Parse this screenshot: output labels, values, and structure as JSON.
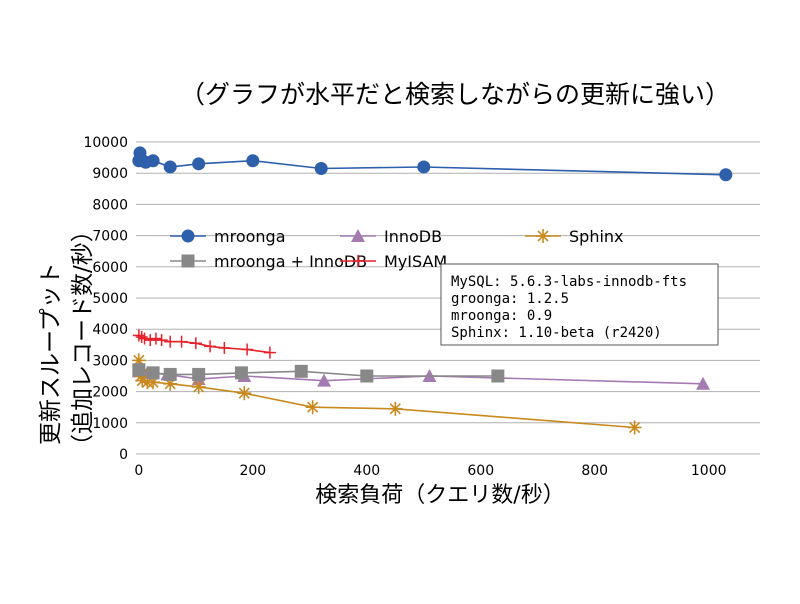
{
  "chart_data": {
    "type": "scatter",
    "title": "（グラフが水平だと検索しながらの更新に強い）",
    "xlabel": "検索負荷（クエリ数/秒）",
    "ylabel_line1": "更新スループット",
    "ylabel_line2": "（追加レコード数/秒）",
    "xlim": [
      -5,
      1090
    ],
    "ylim": [
      0,
      10000
    ],
    "xticks": [
      0,
      200,
      400,
      600,
      800,
      1000
    ],
    "yticks": [
      0,
      1000,
      2000,
      3000,
      4000,
      5000,
      6000,
      7000,
      8000,
      9000,
      10000
    ],
    "grid": "horizontal",
    "legend_position": "center-left",
    "series": [
      {
        "name": "mroonga",
        "color": "#2e5fab",
        "marker": "circle",
        "points": [
          [
            0,
            9400
          ],
          [
            2,
            9650
          ],
          [
            4,
            9450
          ],
          [
            12,
            9350
          ],
          [
            25,
            9400
          ],
          [
            55,
            9200
          ],
          [
            105,
            9300
          ],
          [
            200,
            9400
          ],
          [
            320,
            9150
          ],
          [
            500,
            9200
          ],
          [
            1030,
            8950
          ]
        ]
      },
      {
        "name": "InnoDB",
        "color": "#a47bb0",
        "marker": "triangle",
        "points": [
          [
            0,
            2650
          ],
          [
            15,
            2600
          ],
          [
            50,
            2550
          ],
          [
            105,
            2400
          ],
          [
            185,
            2500
          ],
          [
            325,
            2350
          ],
          [
            510,
            2500
          ],
          [
            990,
            2250
          ]
        ]
      },
      {
        "name": "Sphinx",
        "color": "#c8891e",
        "marker": "star",
        "points": [
          [
            0,
            3000
          ],
          [
            2,
            2700
          ],
          [
            4,
            2500
          ],
          [
            6,
            2350
          ],
          [
            15,
            2300
          ],
          [
            25,
            2300
          ],
          [
            55,
            2250
          ],
          [
            105,
            2150
          ],
          [
            185,
            1950
          ],
          [
            305,
            1500
          ],
          [
            450,
            1450
          ],
          [
            870,
            850
          ]
        ]
      },
      {
        "name": "mroonga + InnoDB",
        "color": "#888888",
        "marker": "square",
        "points": [
          [
            0,
            2700
          ],
          [
            25,
            2600
          ],
          [
            55,
            2550
          ],
          [
            105,
            2550
          ],
          [
            180,
            2600
          ],
          [
            285,
            2650
          ],
          [
            400,
            2500
          ],
          [
            630,
            2500
          ]
        ]
      },
      {
        "name": "MyISAM",
        "color": "#e8202a",
        "marker": "plus",
        "points": [
          [
            0,
            3800
          ],
          [
            5,
            3750
          ],
          [
            10,
            3700
          ],
          [
            20,
            3650
          ],
          [
            30,
            3700
          ],
          [
            40,
            3650
          ],
          [
            55,
            3600
          ],
          [
            75,
            3600
          ],
          [
            100,
            3550
          ],
          [
            125,
            3450
          ],
          [
            150,
            3400
          ],
          [
            190,
            3350
          ],
          [
            230,
            3250
          ]
        ]
      }
    ],
    "annotation": [
      "MySQL: 5.6.3-labs-innodb-fts",
      "groonga: 1.2.5",
      "mroonga: 0.9",
      "Sphinx: 1.10-beta (r2420)"
    ]
  }
}
